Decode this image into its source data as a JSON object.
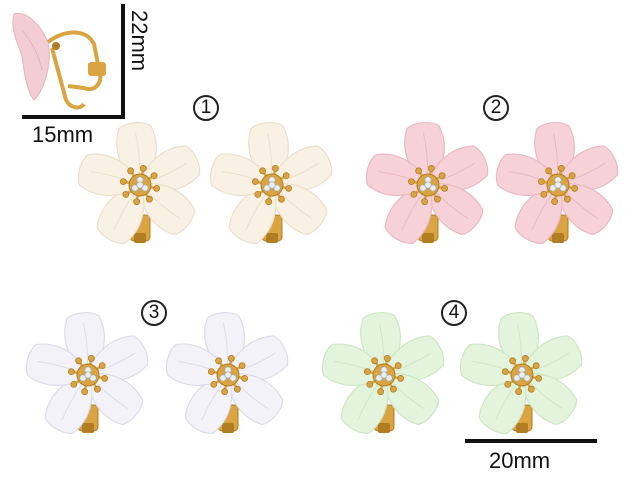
{
  "dimensions": {
    "height_label": "22mm",
    "width_label": "15mm",
    "scale_label": "20mm"
  },
  "variants": [
    {
      "number": "1",
      "color": "#f8f1e4",
      "shade": "#eadfcc"
    },
    {
      "number": "2",
      "color": "#f6d2d8",
      "shade": "#e8b9c2"
    },
    {
      "number": "3",
      "color": "#f2f2f8",
      "shade": "#dcdce8"
    },
    {
      "number": "4",
      "color": "#e3f3dc",
      "shade": "#cde6c3"
    }
  ],
  "colors": {
    "gold": "#d9a441",
    "gold_dark": "#b07d22",
    "crystal": "#e8eef2",
    "line": "#111111"
  }
}
